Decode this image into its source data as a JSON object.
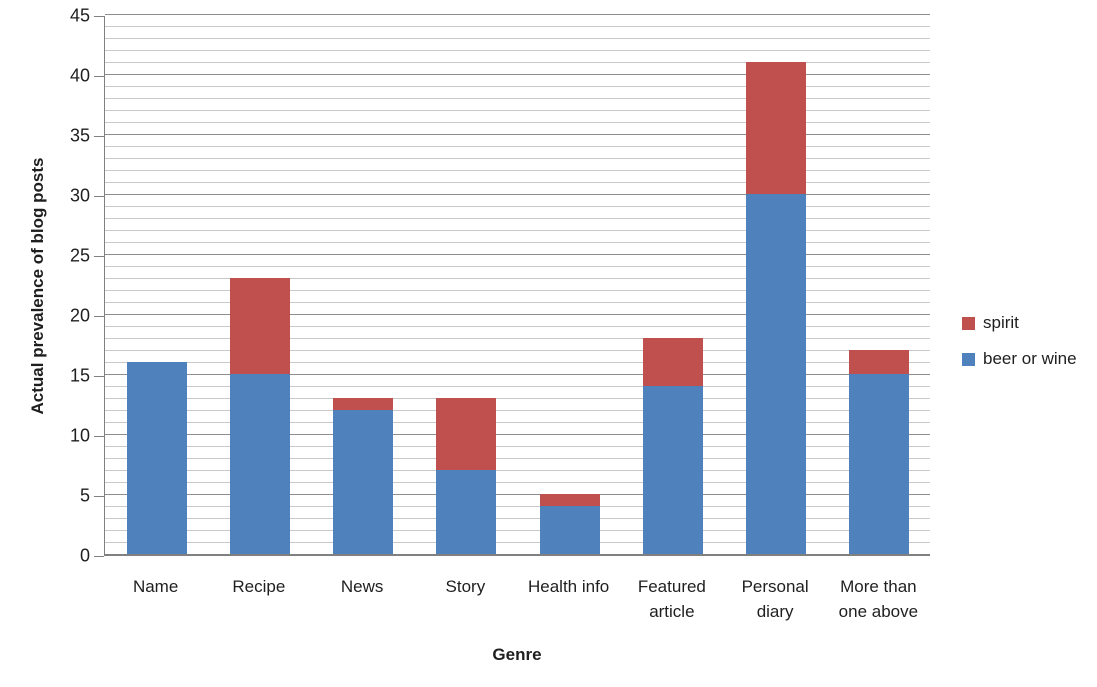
{
  "chart_data": {
    "type": "bar",
    "subtype": "stacked-vertical",
    "title": "",
    "xlabel": "Genre",
    "ylabel": "Actual prevalence of blog posts",
    "categories": [
      "Name",
      "Recipe",
      "News",
      "Story",
      "Health info",
      "Featured article",
      "Personal diary",
      "More than one above"
    ],
    "series": [
      {
        "name": "beer or wine",
        "color": "#4F81BD",
        "values": [
          16,
          15,
          12,
          7,
          4,
          14,
          30,
          15
        ]
      },
      {
        "name": "spirit",
        "color": "#C0504D",
        "values": [
          0,
          8,
          1,
          6,
          1,
          4,
          11,
          2
        ]
      }
    ],
    "totals": [
      16,
      23,
      13,
      13,
      5,
      18,
      41,
      17
    ],
    "ylim": [
      0,
      45
    ],
    "y_major_step": 5,
    "y_minor_step": 1,
    "y_tick_labels": [
      "0",
      "5",
      "10",
      "15",
      "20",
      "25",
      "30",
      "35",
      "40",
      "45"
    ],
    "grid": "horizontal, minor every 1, major every 5",
    "legend_position": "right",
    "legend_order": [
      "spirit",
      "beer or wine"
    ]
  },
  "colors": {
    "beer_or_wine": "#4F81BD",
    "spirit": "#C0504D",
    "minor_gridline": "#c9c9c9",
    "major_gridline": "#8e8e8e",
    "axis_line": "#808080",
    "background": "#ffffff",
    "text": "#1f1f1f"
  }
}
